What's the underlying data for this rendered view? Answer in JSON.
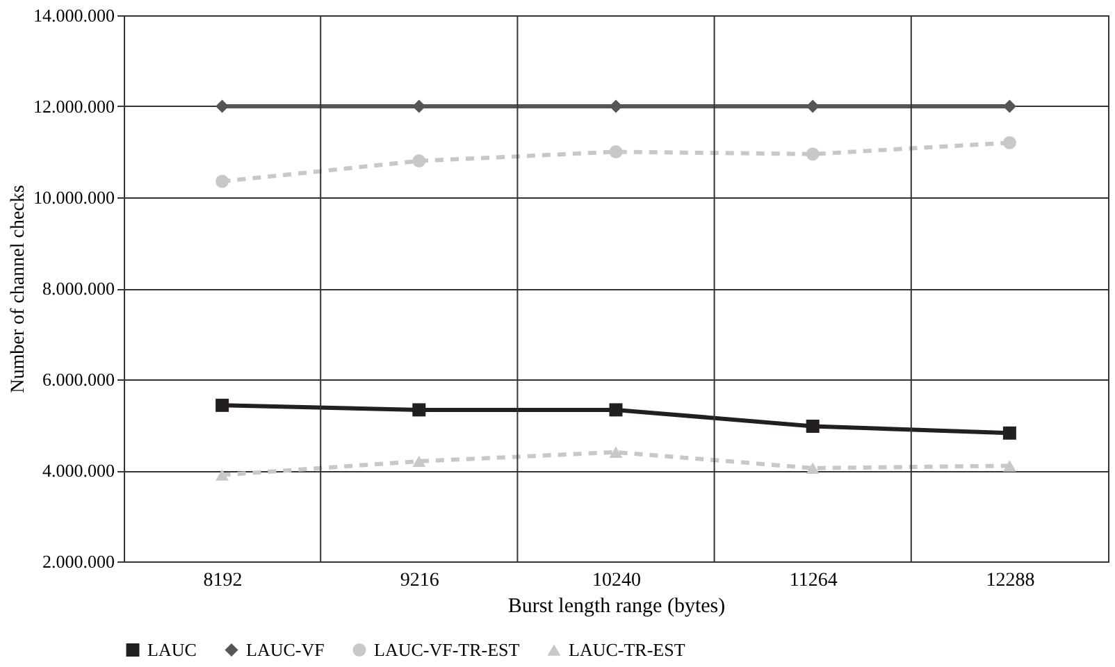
{
  "chart_data": {
    "type": "line",
    "xlabel": "Burst length range (bytes)",
    "ylabel": "Number of channel checks",
    "categories": [
      "8192",
      "9216",
      "10240",
      "11264",
      "12288"
    ],
    "series": [
      {
        "name": "LAUC",
        "color": "#231f20",
        "marker": "square",
        "line_style": "solid",
        "values": [
          5430000,
          5330000,
          5330000,
          4970000,
          4820000
        ]
      },
      {
        "name": "LAUC-VF",
        "color": "#555555",
        "marker": "diamond",
        "line_style": "solid",
        "values": [
          12000000,
          12000000,
          12000000,
          12000000,
          12000000
        ]
      },
      {
        "name": "LAUC-VF-TR-EST",
        "color": "#c8c8c8",
        "marker": "circle",
        "line_style": "dashed",
        "values": [
          10350000,
          10800000,
          11000000,
          10950000,
          11200000
        ]
      },
      {
        "name": "LAUC-TR-EST",
        "color": "#c8c8c8",
        "marker": "triangle",
        "line_style": "dashed",
        "values": [
          3900000,
          4200000,
          4400000,
          4050000,
          4100000
        ]
      }
    ],
    "ylim": [
      2000000,
      14000000
    ],
    "yticks": [
      {
        "value": 2000000,
        "label": "2.000.000"
      },
      {
        "value": 4000000,
        "label": "4.000.000"
      },
      {
        "value": 6000000,
        "label": "6.000.000"
      },
      {
        "value": 8000000,
        "label": "8.000.000"
      },
      {
        "value": 10000000,
        "label": "10.000.000"
      },
      {
        "value": 12000000,
        "label": "12.000.000"
      },
      {
        "value": 14000000,
        "label": "14.000.000"
      }
    ],
    "grid": true,
    "legend": "bottom"
  }
}
